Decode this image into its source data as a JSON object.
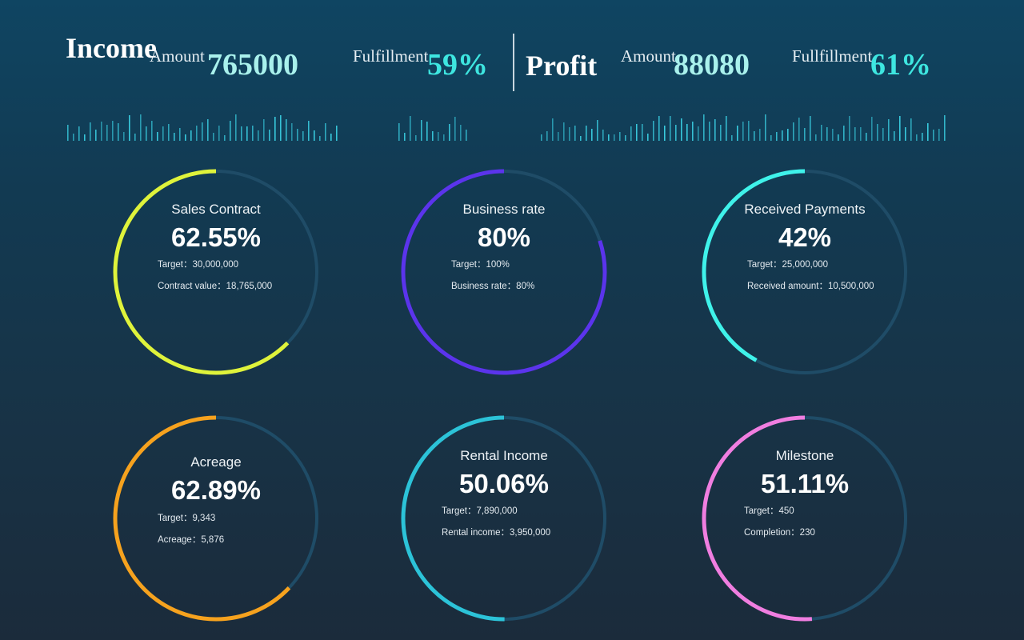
{
  "header": {
    "income": {
      "title": "Income",
      "amount_label": "Amount",
      "amount_value": "765000",
      "fulfillment_label": "Fulfillment",
      "fulfillment_value": "59%"
    },
    "profit": {
      "title": "Profit",
      "amount_label": "Amount",
      "amount_value": "88080",
      "fulfillment_label": "Fullfillment",
      "fulfillment_value": "61%"
    }
  },
  "colors": {
    "sales": "#dff33b",
    "business": "#5b34ec",
    "received": "#3ff2ea",
    "acreage": "#f6a21e",
    "rental": "#2cc3d8",
    "milestone": "#f07ee0",
    "track": "#1f4c67",
    "bars": "#3bd3e6"
  },
  "cards": [
    {
      "title": "Sales Contract",
      "pct": "62.55%",
      "progress": 0.6255,
      "line1": "Target：30,000,000",
      "line2": "Contract value：18,765,000"
    },
    {
      "title": "Business rate",
      "pct": "80%",
      "progress": 0.8,
      "line1": "Target：100%",
      "line2": "Business rate：80%"
    },
    {
      "title": "Received Payments",
      "pct": "42%",
      "progress": 0.42,
      "line1": "Target：25,000,000",
      "line2": "Received amount：10,500,000"
    },
    {
      "title": "Acreage",
      "pct": "62.89%",
      "progress": 0.6289,
      "line1": "Target：9,343",
      "line2": "Acreage：5,876"
    },
    {
      "title": "Rental Income",
      "pct": "50.06%",
      "progress": 0.5006,
      "line1": "Target：7,890,000",
      "line2": "Rental income：3,950,000"
    },
    {
      "title": "Milestone",
      "pct": "51.11%",
      "progress": 0.5111,
      "line1": "Target：450",
      "line2": "Completion：230"
    }
  ]
}
